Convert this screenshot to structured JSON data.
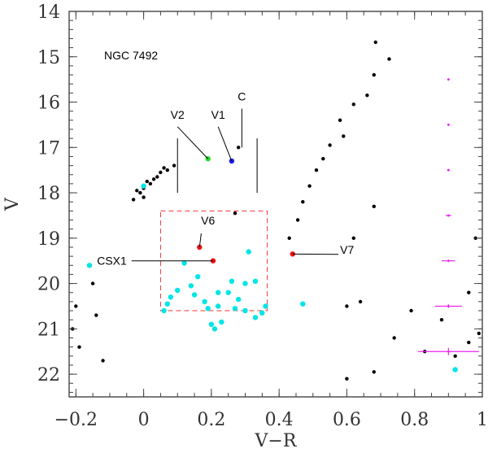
{
  "chart_data": {
    "type": "scatter",
    "title": "NGC 7492",
    "xlabel": "V−R",
    "ylabel": "V",
    "xlim": [
      -0.22,
      1.0
    ],
    "ylim": [
      14.0,
      22.5
    ],
    "y_inverted": true,
    "x_ticks": [
      -0.2,
      0,
      0.2,
      0.4,
      0.6,
      0.8,
      1
    ],
    "x_tick_labels": [
      "−0.2",
      "0",
      "0.2",
      "0.4",
      "0.6",
      "0.8",
      "1"
    ],
    "y_ticks": [
      14,
      15,
      16,
      17,
      18,
      19,
      20,
      21,
      22
    ],
    "y_tick_labels": [
      "14",
      "15",
      "16",
      "17",
      "18",
      "19",
      "20",
      "21",
      "22"
    ],
    "colors": {
      "field": "#000000",
      "cyan": "#00e5e5",
      "green": "#22dd22",
      "blue": "#1a1aee",
      "red": "#ee1111",
      "error": "#ee22ee",
      "box": "#ee3333",
      "frame": "#444444"
    },
    "series": [
      {
        "name": "cluster-stars-black",
        "color": "#000000",
        "points": [
          [
            0.685,
            14.68
          ],
          [
            0.725,
            15.05
          ],
          [
            0.68,
            15.4
          ],
          [
            0.66,
            15.85
          ],
          [
            0.62,
            16.05
          ],
          [
            0.58,
            16.4
          ],
          [
            0.59,
            16.75
          ],
          [
            0.55,
            16.95
          ],
          [
            0.53,
            17.25
          ],
          [
            0.51,
            17.5
          ],
          [
            0.49,
            17.85
          ],
          [
            0.47,
            18.2
          ],
          [
            0.455,
            18.6
          ],
          [
            0.43,
            19.0
          ],
          [
            0.68,
            18.3
          ],
          [
            0.28,
            17.0
          ],
          [
            0.27,
            18.45
          ],
          [
            0.0,
            18.1
          ],
          [
            -0.02,
            17.95
          ],
          [
            0.02,
            17.8
          ],
          [
            0.04,
            17.65
          ],
          [
            0.07,
            17.5
          ],
          [
            0.09,
            17.4
          ],
          [
            0.05,
            17.55
          ],
          [
            -0.01,
            18.0
          ],
          [
            0.03,
            17.7
          ],
          [
            -0.03,
            18.15
          ],
          [
            0.06,
            17.45
          ],
          [
            0.0,
            17.9
          ],
          [
            0.01,
            17.75
          ],
          [
            0.62,
            19.0
          ],
          [
            0.98,
            19.0
          ],
          [
            0.96,
            20.2
          ],
          [
            0.99,
            21.1
          ],
          [
            0.88,
            20.8
          ],
          [
            0.92,
            21.6
          ],
          [
            0.96,
            21.3
          ],
          [
            0.83,
            21.5
          ],
          [
            0.74,
            21.2
          ],
          [
            0.79,
            20.6
          ],
          [
            -0.2,
            20.5
          ],
          [
            -0.21,
            21.0
          ],
          [
            -0.19,
            21.4
          ],
          [
            -0.14,
            20.7
          ],
          [
            -0.12,
            21.7
          ],
          [
            -0.15,
            20.0
          ],
          [
            0.68,
            21.95
          ],
          [
            0.6,
            22.1
          ],
          [
            0.64,
            20.4
          ],
          [
            0.6,
            20.5
          ]
        ]
      },
      {
        "name": "cyan-stars",
        "color": "#00e5e5",
        "points": [
          [
            -0.16,
            19.6
          ],
          [
            0.12,
            19.55
          ],
          [
            0.31,
            19.3
          ],
          [
            0.16,
            19.85
          ],
          [
            0.26,
            19.95
          ],
          [
            0.3,
            20.0
          ],
          [
            0.33,
            19.95
          ],
          [
            0.22,
            20.2
          ],
          [
            0.25,
            20.2
          ],
          [
            0.28,
            20.35
          ],
          [
            0.08,
            20.3
          ],
          [
            0.1,
            20.15
          ],
          [
            0.15,
            20.25
          ],
          [
            0.18,
            20.4
          ],
          [
            0.19,
            20.55
          ],
          [
            0.22,
            20.5
          ],
          [
            0.27,
            20.55
          ],
          [
            0.3,
            20.6
          ],
          [
            0.33,
            20.75
          ],
          [
            0.35,
            20.65
          ],
          [
            0.36,
            20.5
          ],
          [
            0.2,
            20.9
          ],
          [
            0.23,
            20.85
          ],
          [
            0.07,
            20.45
          ],
          [
            0.06,
            20.6
          ],
          [
            0.0,
            17.85
          ],
          [
            0.47,
            20.45
          ],
          [
            0.21,
            21.0
          ],
          [
            0.14,
            20.05
          ],
          [
            0.92,
            21.9
          ]
        ]
      },
      {
        "name": "V2",
        "color": "#22dd22",
        "points": [
          [
            0.19,
            17.25
          ]
        ]
      },
      {
        "name": "V1",
        "color": "#1a1aee",
        "points": [
          [
            0.26,
            17.3
          ]
        ]
      },
      {
        "name": "variables-red",
        "color": "#ee1111",
        "points": [
          [
            0.165,
            19.2
          ],
          [
            0.205,
            19.5
          ],
          [
            0.44,
            19.35
          ]
        ]
      }
    ],
    "error_bars": {
      "color": "#ee22ee",
      "x": 0.9,
      "points": [
        {
          "y": 15.5,
          "xerr": 0.003,
          "yerr": 0.01
        },
        {
          "y": 16.5,
          "xerr": 0.003,
          "yerr": 0.01
        },
        {
          "y": 17.5,
          "xerr": 0.004,
          "yerr": 0.01
        },
        {
          "y": 18.5,
          "xerr": 0.008,
          "yerr": 0.02
        },
        {
          "y": 19.5,
          "xerr": 0.02,
          "yerr": 0.02
        },
        {
          "y": 20.5,
          "xerr": 0.04,
          "yerr": 0.04
        },
        {
          "y": 21.5,
          "xerr": 0.09,
          "yerr": 0.08
        }
      ]
    },
    "reference_box": {
      "color": "#ee3333",
      "style": "dashed",
      "x_range": [
        0.05,
        0.365
      ],
      "y_range": [
        18.4,
        20.6
      ]
    },
    "annotations": [
      {
        "text": "C",
        "point": [
          0.29,
          17.0
        ],
        "label_at": [
          0.29,
          16.0
        ]
      },
      {
        "text": "V1",
        "point": [
          0.26,
          17.3
        ],
        "label_at": [
          0.22,
          16.4
        ]
      },
      {
        "text": "V2",
        "point": [
          0.19,
          17.25
        ],
        "label_at": [
          0.1,
          16.4
        ]
      },
      {
        "text": "V6",
        "point": [
          0.165,
          19.2
        ],
        "label_at": [
          0.19,
          18.75
        ]
      },
      {
        "text": "CSX1",
        "point": [
          0.205,
          19.5
        ],
        "label_at": [
          -0.05,
          19.5
        ]
      },
      {
        "text": "V7",
        "point": [
          0.44,
          19.35
        ],
        "label_at": [
          0.58,
          19.25
        ]
      }
    ],
    "guide_lines": [
      {
        "x": 0.1,
        "y_range": [
          16.8,
          18.0
        ]
      },
      {
        "x": 0.335,
        "y_range": [
          16.8,
          18.0
        ]
      }
    ]
  }
}
